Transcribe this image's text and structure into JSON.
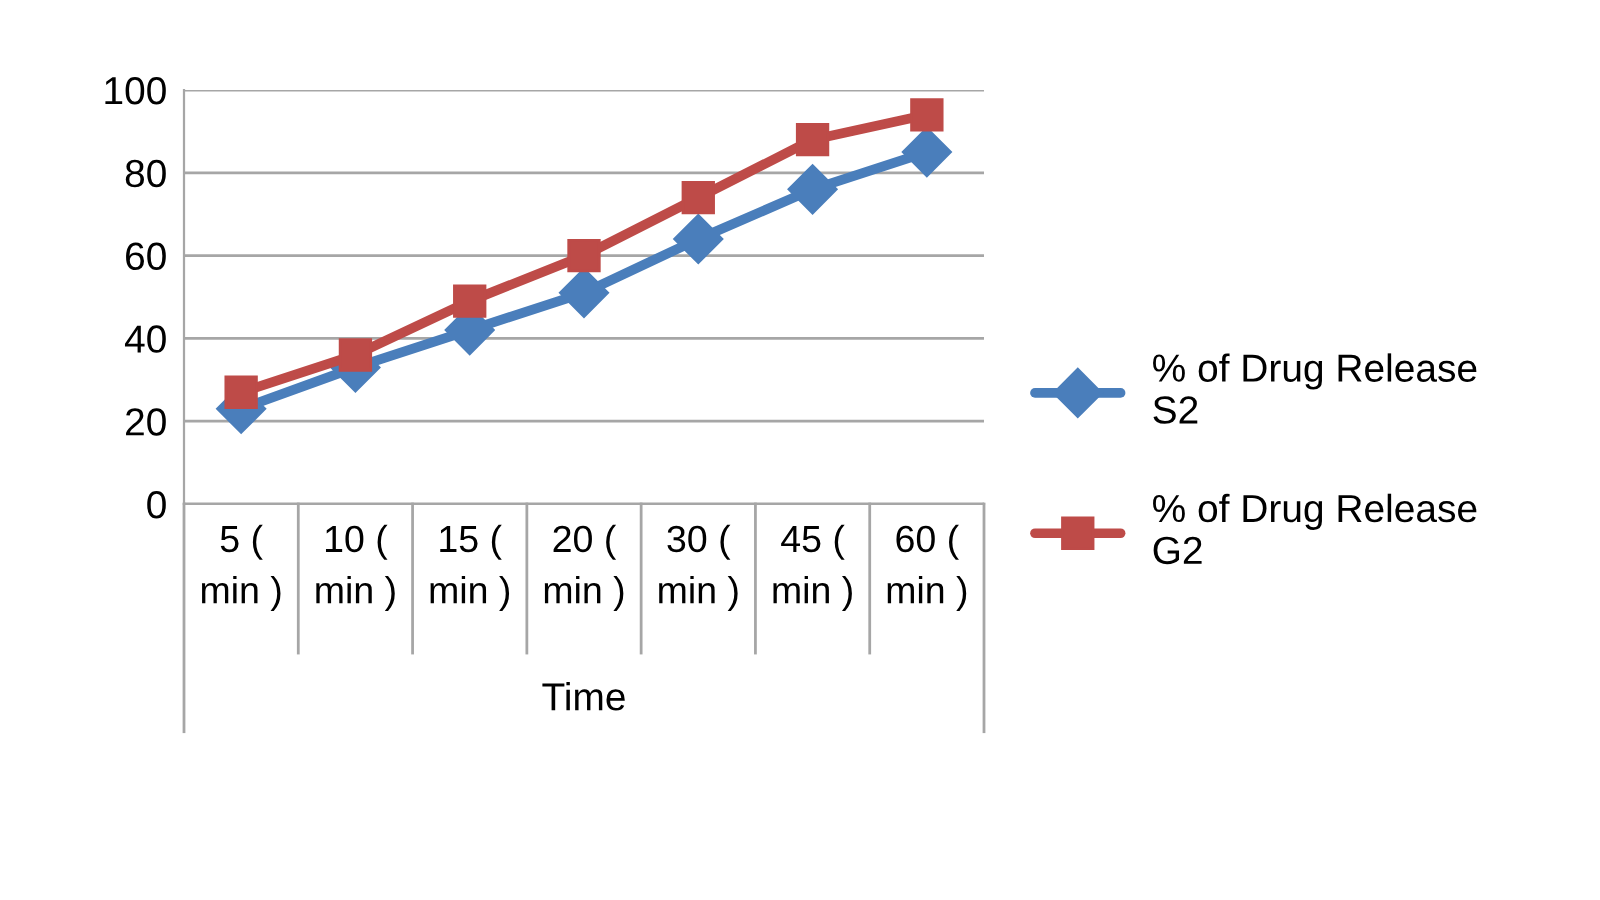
{
  "chart_data": {
    "type": "line",
    "xlabel": "Time",
    "categories": [
      "5 ( min )",
      "10 ( min )",
      "15 ( min )",
      "20 ( min )",
      "30 ( min )",
      "45 ( min )",
      "60 ( min )"
    ],
    "series": [
      {
        "name": "% of Drug Release S2",
        "color": "#4a7ebb",
        "marker": "diamond",
        "values": [
          23,
          33,
          42,
          51,
          64,
          76,
          85
        ]
      },
      {
        "name": "% of Drug Release G2",
        "color": "#be4b48",
        "marker": "square",
        "values": [
          27,
          36,
          49,
          60,
          74,
          88,
          94
        ]
      }
    ],
    "ylim": [
      0,
      100
    ],
    "yticks": [
      0,
      20,
      40,
      60,
      80,
      100
    ],
    "grid": "y",
    "legend": "right",
    "line_style": "solid"
  }
}
